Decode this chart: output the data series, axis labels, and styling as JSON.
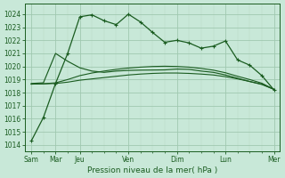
{
  "background_color": "#c8e8d8",
  "grid_color_major": "#a0c8b0",
  "grid_color_minor": "#b8d8c4",
  "line_color": "#1a5c20",
  "title": "Pression niveau de la mer( hPa )",
  "ylim": [
    1013.5,
    1024.8
  ],
  "yticks": [
    1014,
    1015,
    1016,
    1017,
    1018,
    1019,
    1020,
    1021,
    1022,
    1023,
    1024
  ],
  "xlim": [
    -0.5,
    20.5
  ],
  "x_label_show": [
    0,
    2,
    4,
    8,
    12,
    16,
    20
  ],
  "x_label_names": [
    "Sam",
    "Mar",
    "Jeu",
    "Ven",
    "Dim",
    "Lun",
    "Mer"
  ],
  "line1_x": [
    0,
    1,
    2,
    3,
    4,
    5,
    6,
    7,
    8,
    9,
    10,
    11,
    12,
    13,
    14,
    15,
    16,
    17,
    18,
    19,
    20
  ],
  "line1_y": [
    1014.3,
    1016.1,
    1018.7,
    1021.0,
    1023.8,
    1023.95,
    1023.5,
    1023.2,
    1024.0,
    1023.4,
    1022.6,
    1021.85,
    1022.0,
    1021.8,
    1021.4,
    1021.55,
    1021.95,
    1020.5,
    1020.1,
    1019.3,
    1018.2
  ],
  "line2_x": [
    0,
    1,
    2,
    3,
    4,
    5,
    6,
    7,
    8,
    9,
    10,
    11,
    12,
    13,
    14,
    15,
    16,
    17,
    18,
    19,
    20
  ],
  "line2_y": [
    1018.7,
    1018.75,
    1021.0,
    1020.4,
    1019.9,
    1019.65,
    1019.55,
    1019.65,
    1019.7,
    1019.72,
    1019.73,
    1019.74,
    1019.8,
    1019.78,
    1019.65,
    1019.55,
    1019.35,
    1019.1,
    1018.85,
    1018.65,
    1018.25
  ],
  "line3_x": [
    0,
    1,
    2,
    3,
    4,
    5,
    6,
    7,
    8,
    9,
    10,
    11,
    12,
    13,
    14,
    15,
    16,
    17,
    18,
    19,
    20
  ],
  "line3_y": [
    1018.65,
    1018.67,
    1018.7,
    1018.8,
    1018.95,
    1019.05,
    1019.15,
    1019.25,
    1019.35,
    1019.42,
    1019.47,
    1019.5,
    1019.5,
    1019.47,
    1019.42,
    1019.35,
    1019.22,
    1019.05,
    1018.85,
    1018.62,
    1018.25
  ],
  "line4_x": [
    0,
    1,
    2,
    3,
    4,
    5,
    6,
    7,
    8,
    9,
    10,
    11,
    12,
    13,
    14,
    15,
    16,
    17,
    18,
    19,
    20
  ],
  "line4_y": [
    1018.65,
    1018.68,
    1018.75,
    1019.0,
    1019.3,
    1019.5,
    1019.65,
    1019.78,
    1019.88,
    1019.95,
    1020.0,
    1020.02,
    1020.0,
    1019.95,
    1019.85,
    1019.72,
    1019.52,
    1019.25,
    1019.0,
    1018.72,
    1018.25
  ]
}
